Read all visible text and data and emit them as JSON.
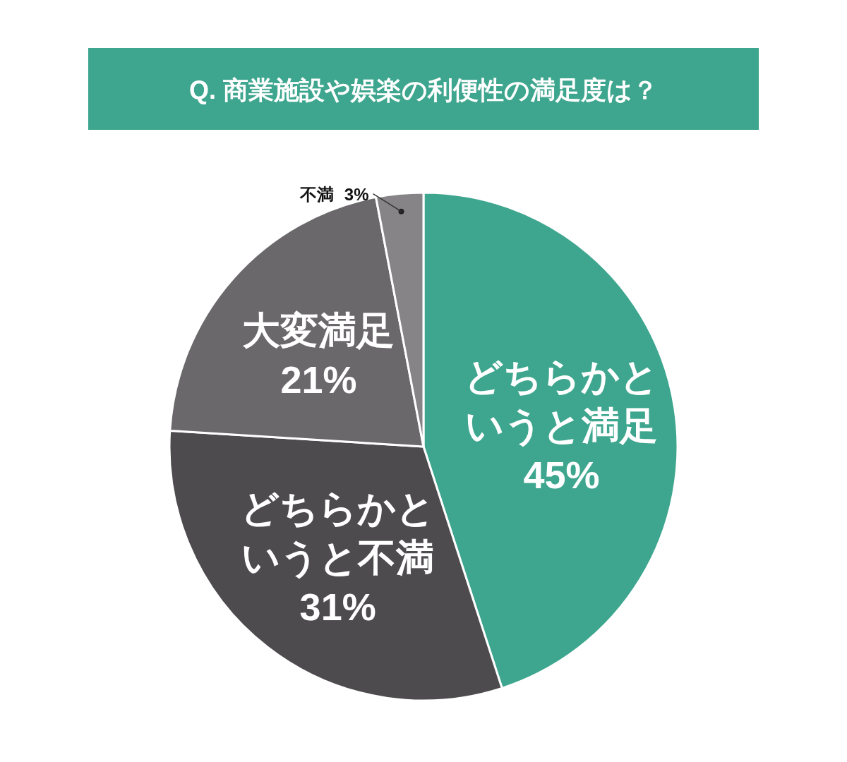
{
  "chart_data": {
    "type": "pie",
    "title": "Q. 商業施設や娯楽の利便性の満足度は？",
    "categories": [
      "どちらかというと満足",
      "どちらかというと不満",
      "大変満足",
      "不満"
    ],
    "values": [
      45,
      31,
      21,
      3
    ],
    "colors": [
      "#3ea68e",
      "#4e4b4f",
      "#6b686c",
      "#878487"
    ],
    "value_labels": [
      "45%",
      "31%",
      "21%",
      "3%"
    ]
  }
}
